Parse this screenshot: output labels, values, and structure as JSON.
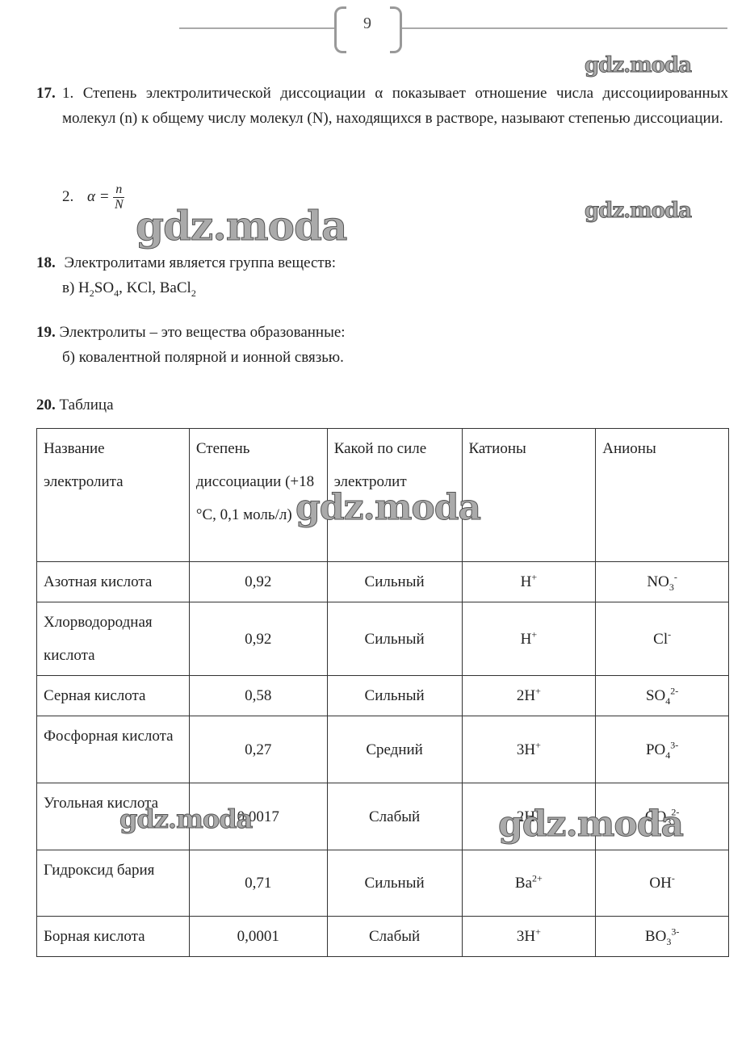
{
  "page_number": "9",
  "watermark": "gdz.moda",
  "q17": {
    "number": "17.",
    "part1": "1. Степень электролитической диссоциации α показывает отношение числа диссоциированных молекул (n) к общему числу молекул (N), находящихся в растворе, называют степенью диссоциации.",
    "part2_label": "2.",
    "formula_lhs": "α =",
    "numerator": "n",
    "denominator": "N"
  },
  "q18": {
    "number": "18.",
    "text": "Электролитами является группа веществ:",
    "answer_prefix": "в) H",
    "answer_html": [
      "в) H",
      "2",
      "SO",
      "4",
      ", KCl, BaCl",
      "2"
    ]
  },
  "q19": {
    "number": "19.",
    "text": "Электролиты – это вещества образованные:",
    "answer": "б) ковалентной полярной и ионной связью."
  },
  "q20": {
    "number": "20.",
    "title": "Таблица",
    "headers": [
      "Название электролита",
      "Степень диссоциации (+18 °C, 0,1 моль/л)",
      "Какой по силе электролит",
      "Катионы",
      "Анионы"
    ],
    "rows": [
      {
        "name": "Азотная кислота",
        "degree": "0,92",
        "strength": "Сильный",
        "cation": [
          "H",
          "+"
        ],
        "anion": [
          "NO",
          "3",
          "-"
        ]
      },
      {
        "name": "Хлорводородная кислота",
        "degree": "0,92",
        "strength": "Сильный",
        "cation": [
          "H",
          "+"
        ],
        "anion": [
          "Cl",
          "",
          "-"
        ]
      },
      {
        "name": "Серная кислота",
        "degree": "0,58",
        "strength": "Сильный",
        "cation": [
          "2H",
          "+"
        ],
        "anion": [
          "SO",
          "4",
          "2-"
        ]
      },
      {
        "name": "Фосфорная кислота",
        "degree": "0,27",
        "strength": "Средний",
        "cation": [
          "3H",
          "+"
        ],
        "anion": [
          "PO",
          "4",
          "3-"
        ]
      },
      {
        "name": "Угольная кислота",
        "degree": "0,0017",
        "strength": "Слабый",
        "cation": [
          "2H",
          "+"
        ],
        "anion": [
          "CO",
          "3",
          "2-"
        ]
      },
      {
        "name": "Гидроксид бария",
        "degree": "0,71",
        "strength": "Сильный",
        "cation": [
          "Ba",
          "2+"
        ],
        "anion": [
          "OH",
          "",
          "-"
        ]
      },
      {
        "name": "Борная кислота",
        "degree": "0,0001",
        "strength": "Слабый",
        "cation": [
          "3H",
          "+"
        ],
        "anion": [
          "BO",
          "3",
          "3-"
        ]
      }
    ]
  }
}
